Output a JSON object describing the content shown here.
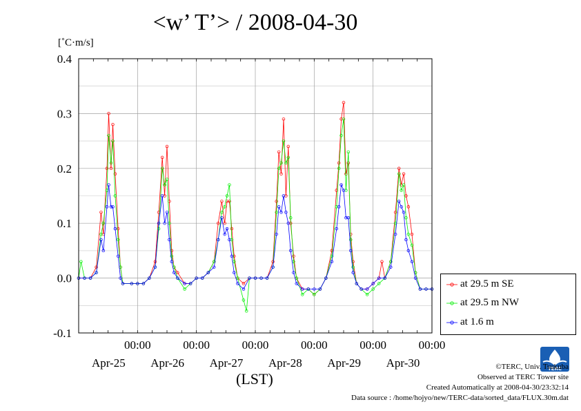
{
  "page": {
    "title": "<w’ T’> / 2008-04-30",
    "unit_label": "[˚C·m/s]",
    "xlabel": "(LST)"
  },
  "legend": {
    "items": [
      {
        "label": "at 29.5 m SE",
        "color": "#ff0000"
      },
      {
        "label": "at 29.5 m NW",
        "color": "#00ee00"
      },
      {
        "label": "at 1.6 m",
        "color": "#0000ff"
      }
    ]
  },
  "credits": {
    "line1": "©TERC, Univ. Tsukuba",
    "line2": "Observed at TERC Tower site",
    "line3": "Created Automatically at 2008-04-30/23:32:14",
    "line4": "Data source : /home/hojyo/new/TERC-data/sorted_data/FLUX.30m.dat",
    "logo_text": "TERC"
  },
  "chart_data": {
    "type": "line",
    "title": "<w’ T’> / 2008-04-30",
    "ylabel": "[˚C·m/s]",
    "xlabel": "(LST)",
    "ylim": [
      -0.1,
      0.4
    ],
    "y_ticks": [
      -0.1,
      0.0,
      0.1,
      0.2,
      0.3,
      0.4
    ],
    "y_tick_labels": [
      "-0.1",
      "0.0",
      "0.1",
      "0.2",
      "0.3",
      "0.4"
    ],
    "xlim_days": [
      -1.0,
      5.0
    ],
    "x_ticks": [
      {
        "day": 0,
        "time": "00:00",
        "date": "Apr-25"
      },
      {
        "day": 1,
        "time": "00:00",
        "date": "Apr-26"
      },
      {
        "day": 2,
        "time": "00:00",
        "date": "Apr-27"
      },
      {
        "day": 3,
        "time": "00:00",
        "date": "Apr-28"
      },
      {
        "day": 4,
        "time": "00:00",
        "date": "Apr-29"
      },
      {
        "day": 5,
        "time": "00:00",
        "date": "Apr-30"
      }
    ],
    "grid": true,
    "legend_position": "right",
    "series": [
      {
        "name": "at 29.5 m SE",
        "color": "#ff0000",
        "values": [
          [
            -1.0,
            0.0
          ],
          [
            -0.9,
            0.0
          ],
          [
            -0.8,
            0.0
          ],
          [
            -0.7,
            0.02
          ],
          [
            -0.62,
            0.12
          ],
          [
            -0.58,
            0.08
          ],
          [
            -0.52,
            0.2
          ],
          [
            -0.49,
            0.3
          ],
          [
            -0.45,
            0.2
          ],
          [
            -0.42,
            0.28
          ],
          [
            -0.38,
            0.19
          ],
          [
            -0.33,
            0.09
          ],
          [
            -0.29,
            0.02
          ],
          [
            -0.25,
            -0.01
          ],
          [
            -0.1,
            -0.01
          ],
          [
            0.0,
            -0.01
          ],
          [
            0.1,
            -0.01
          ],
          [
            0.2,
            0.0
          ],
          [
            0.3,
            0.03
          ],
          [
            0.36,
            0.12
          ],
          [
            0.42,
            0.22
          ],
          [
            0.46,
            0.15
          ],
          [
            0.5,
            0.24
          ],
          [
            0.54,
            0.14
          ],
          [
            0.58,
            0.05
          ],
          [
            0.62,
            0.02
          ],
          [
            0.68,
            0.01
          ],
          [
            0.8,
            -0.01
          ],
          [
            0.9,
            -0.01
          ],
          [
            1.0,
            0.0
          ],
          [
            1.1,
            0.0
          ],
          [
            1.2,
            0.01
          ],
          [
            1.3,
            0.03
          ],
          [
            1.37,
            0.1
          ],
          [
            1.43,
            0.14
          ],
          [
            1.48,
            0.1
          ],
          [
            1.52,
            0.14
          ],
          [
            1.56,
            0.14
          ],
          [
            1.6,
            0.09
          ],
          [
            1.64,
            0.04
          ],
          [
            1.7,
            0.0
          ],
          [
            1.8,
            -0.01
          ],
          [
            1.9,
            0.0
          ],
          [
            2.0,
            0.0
          ],
          [
            2.1,
            0.0
          ],
          [
            2.2,
            0.0
          ],
          [
            2.3,
            0.03
          ],
          [
            2.36,
            0.14
          ],
          [
            2.4,
            0.23
          ],
          [
            2.44,
            0.19
          ],
          [
            2.48,
            0.29
          ],
          [
            2.52,
            0.15
          ],
          [
            2.56,
            0.24
          ],
          [
            2.6,
            0.1
          ],
          [
            2.65,
            0.04
          ],
          [
            2.7,
            0.0
          ],
          [
            2.8,
            -0.02
          ],
          [
            2.9,
            -0.02
          ],
          [
            3.0,
            -0.03
          ],
          [
            3.1,
            -0.02
          ],
          [
            3.2,
            0.0
          ],
          [
            3.3,
            0.05
          ],
          [
            3.38,
            0.16
          ],
          [
            3.42,
            0.21
          ],
          [
            3.46,
            0.29
          ],
          [
            3.5,
            0.32
          ],
          [
            3.54,
            0.19
          ],
          [
            3.58,
            0.21
          ],
          [
            3.62,
            0.08
          ],
          [
            3.66,
            0.03
          ],
          [
            3.72,
            -0.01
          ],
          [
            3.8,
            -0.02
          ],
          [
            3.9,
            -0.02
          ],
          [
            4.0,
            -0.01
          ],
          [
            4.1,
            0.0
          ],
          [
            4.15,
            0.03
          ],
          [
            4.2,
            0.0
          ],
          [
            4.3,
            0.03
          ],
          [
            4.38,
            0.12
          ],
          [
            4.44,
            0.2
          ],
          [
            4.48,
            0.17
          ],
          [
            4.52,
            0.19
          ],
          [
            4.56,
            0.15
          ],
          [
            4.6,
            0.13
          ],
          [
            4.66,
            0.08
          ],
          [
            4.72,
            0.01
          ],
          [
            4.8,
            -0.02
          ],
          [
            4.9,
            -0.02
          ],
          [
            5.0,
            -0.02
          ]
        ]
      },
      {
        "name": "at 29.5 m NW",
        "color": "#00ee00",
        "values": [
          [
            -1.0,
            0.0
          ],
          [
            -0.96,
            0.03
          ],
          [
            -0.9,
            0.0
          ],
          [
            -0.8,
            0.0
          ],
          [
            -0.7,
            0.01
          ],
          [
            -0.62,
            0.08
          ],
          [
            -0.58,
            0.1
          ],
          [
            -0.52,
            0.16
          ],
          [
            -0.49,
            0.26
          ],
          [
            -0.45,
            0.21
          ],
          [
            -0.42,
            0.25
          ],
          [
            -0.38,
            0.15
          ],
          [
            -0.33,
            0.07
          ],
          [
            -0.29,
            0.02
          ],
          [
            -0.25,
            -0.01
          ],
          [
            -0.1,
            -0.01
          ],
          [
            0.0,
            -0.01
          ],
          [
            0.1,
            -0.01
          ],
          [
            0.2,
            0.0
          ],
          [
            0.3,
            0.02
          ],
          [
            0.36,
            0.09
          ],
          [
            0.42,
            0.2
          ],
          [
            0.46,
            0.17
          ],
          [
            0.5,
            0.18
          ],
          [
            0.54,
            0.1
          ],
          [
            0.58,
            0.04
          ],
          [
            0.62,
            0.02
          ],
          [
            0.68,
            0.0
          ],
          [
            0.8,
            -0.02
          ],
          [
            0.9,
            -0.01
          ],
          [
            1.0,
            0.0
          ],
          [
            1.1,
            0.0
          ],
          [
            1.2,
            0.01
          ],
          [
            1.3,
            0.03
          ],
          [
            1.37,
            0.07
          ],
          [
            1.43,
            0.12
          ],
          [
            1.48,
            0.13
          ],
          [
            1.52,
            0.15
          ],
          [
            1.56,
            0.17
          ],
          [
            1.6,
            0.07
          ],
          [
            1.64,
            0.03
          ],
          [
            1.7,
            0.0
          ],
          [
            1.8,
            -0.04
          ],
          [
            1.85,
            -0.06
          ],
          [
            1.9,
            0.0
          ],
          [
            2.0,
            0.0
          ],
          [
            2.1,
            0.0
          ],
          [
            2.2,
            0.0
          ],
          [
            2.3,
            0.02
          ],
          [
            2.36,
            0.12
          ],
          [
            2.4,
            0.2
          ],
          [
            2.44,
            0.21
          ],
          [
            2.48,
            0.25
          ],
          [
            2.52,
            0.21
          ],
          [
            2.56,
            0.22
          ],
          [
            2.6,
            0.11
          ],
          [
            2.65,
            0.03
          ],
          [
            2.7,
            0.0
          ],
          [
            2.8,
            -0.03
          ],
          [
            2.9,
            -0.02
          ],
          [
            3.0,
            -0.03
          ],
          [
            3.1,
            -0.02
          ],
          [
            3.2,
            0.0
          ],
          [
            3.3,
            0.04
          ],
          [
            3.38,
            0.13
          ],
          [
            3.42,
            0.2
          ],
          [
            3.46,
            0.26
          ],
          [
            3.5,
            0.29
          ],
          [
            3.54,
            0.16
          ],
          [
            3.58,
            0.23
          ],
          [
            3.62,
            0.07
          ],
          [
            3.66,
            0.02
          ],
          [
            3.72,
            -0.01
          ],
          [
            3.8,
            -0.02
          ],
          [
            3.9,
            -0.03
          ],
          [
            4.0,
            -0.02
          ],
          [
            4.1,
            -0.01
          ],
          [
            4.2,
            0.0
          ],
          [
            4.3,
            0.03
          ],
          [
            4.38,
            0.1
          ],
          [
            4.44,
            0.19
          ],
          [
            4.48,
            0.16
          ],
          [
            4.52,
            0.17
          ],
          [
            4.56,
            0.11
          ],
          [
            4.6,
            0.08
          ],
          [
            4.66,
            0.06
          ],
          [
            4.72,
            0.01
          ],
          [
            4.8,
            -0.02
          ],
          [
            4.9,
            -0.02
          ],
          [
            5.0,
            -0.02
          ]
        ]
      },
      {
        "name": "at 1.6 m",
        "color": "#0000ff",
        "values": [
          [
            -1.0,
            0.0
          ],
          [
            -0.9,
            0.0
          ],
          [
            -0.8,
            0.0
          ],
          [
            -0.7,
            0.01
          ],
          [
            -0.62,
            0.07
          ],
          [
            -0.58,
            0.05
          ],
          [
            -0.52,
            0.13
          ],
          [
            -0.49,
            0.17
          ],
          [
            -0.45,
            0.13
          ],
          [
            -0.42,
            0.13
          ],
          [
            -0.38,
            0.09
          ],
          [
            -0.33,
            0.04
          ],
          [
            -0.29,
            0.0
          ],
          [
            -0.25,
            -0.01
          ],
          [
            -0.1,
            -0.01
          ],
          [
            0.0,
            -0.01
          ],
          [
            0.1,
            -0.01
          ],
          [
            0.2,
            0.0
          ],
          [
            0.3,
            0.02
          ],
          [
            0.36,
            0.1
          ],
          [
            0.42,
            0.15
          ],
          [
            0.46,
            0.1
          ],
          [
            0.5,
            0.12
          ],
          [
            0.54,
            0.07
          ],
          [
            0.58,
            0.03
          ],
          [
            0.62,
            0.01
          ],
          [
            0.68,
            0.0
          ],
          [
            0.8,
            -0.01
          ],
          [
            0.9,
            -0.01
          ],
          [
            1.0,
            0.0
          ],
          [
            1.1,
            0.0
          ],
          [
            1.2,
            0.01
          ],
          [
            1.3,
            0.02
          ],
          [
            1.37,
            0.07
          ],
          [
            1.43,
            0.11
          ],
          [
            1.48,
            0.08
          ],
          [
            1.52,
            0.09
          ],
          [
            1.56,
            0.07
          ],
          [
            1.6,
            0.04
          ],
          [
            1.64,
            0.01
          ],
          [
            1.7,
            -0.01
          ],
          [
            1.8,
            -0.02
          ],
          [
            1.9,
            0.0
          ],
          [
            2.0,
            0.0
          ],
          [
            2.1,
            0.0
          ],
          [
            2.2,
            0.0
          ],
          [
            2.3,
            0.02
          ],
          [
            2.36,
            0.08
          ],
          [
            2.4,
            0.13
          ],
          [
            2.44,
            0.12
          ],
          [
            2.48,
            0.15
          ],
          [
            2.52,
            0.12
          ],
          [
            2.56,
            0.1
          ],
          [
            2.6,
            0.05
          ],
          [
            2.65,
            0.01
          ],
          [
            2.7,
            -0.01
          ],
          [
            2.8,
            -0.02
          ],
          [
            2.9,
            -0.02
          ],
          [
            3.0,
            -0.02
          ],
          [
            3.1,
            -0.02
          ],
          [
            3.2,
            0.0
          ],
          [
            3.3,
            0.03
          ],
          [
            3.38,
            0.09
          ],
          [
            3.42,
            0.13
          ],
          [
            3.46,
            0.17
          ],
          [
            3.5,
            0.16
          ],
          [
            3.54,
            0.11
          ],
          [
            3.58,
            0.11
          ],
          [
            3.62,
            0.05
          ],
          [
            3.66,
            0.01
          ],
          [
            3.72,
            -0.01
          ],
          [
            3.8,
            -0.02
          ],
          [
            3.9,
            -0.02
          ],
          [
            4.0,
            -0.01
          ],
          [
            4.1,
            0.0
          ],
          [
            4.2,
            0.0
          ],
          [
            4.3,
            0.02
          ],
          [
            4.38,
            0.08
          ],
          [
            4.44,
            0.14
          ],
          [
            4.48,
            0.13
          ],
          [
            4.52,
            0.12
          ],
          [
            4.56,
            0.07
          ],
          [
            4.6,
            0.05
          ],
          [
            4.66,
            0.03
          ],
          [
            4.72,
            0.0
          ],
          [
            4.8,
            -0.02
          ],
          [
            4.9,
            -0.02
          ],
          [
            5.0,
            -0.02
          ]
        ]
      }
    ]
  }
}
